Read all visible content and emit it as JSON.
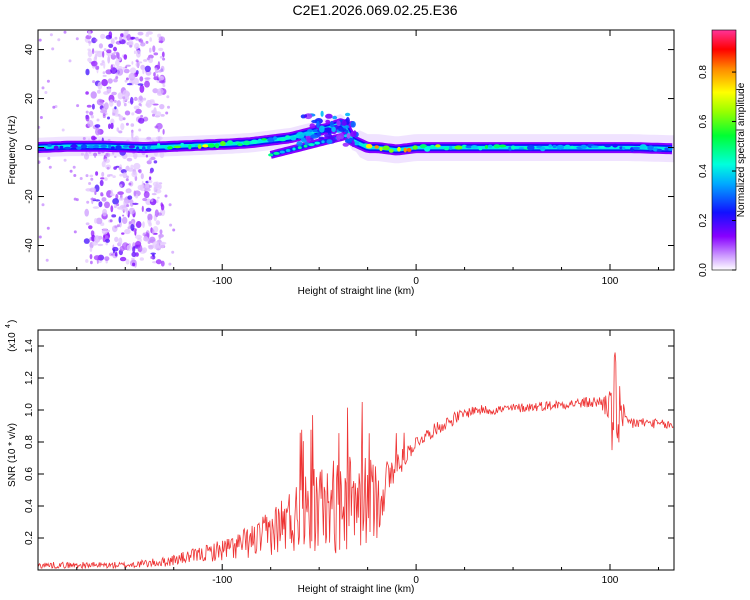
{
  "page_title": "C2E1.2026.069.02.25.E36",
  "chart_data": [
    {
      "type": "heatmap",
      "title": "C2E1.2026.069.02.25.E36",
      "xlabel": "Height of straight line (km)",
      "ylabel": "Frequency (Hz)",
      "xlim": [
        -195,
        133
      ],
      "ylim": [
        -50,
        48
      ],
      "xticks": [
        -100,
        0,
        100
      ],
      "xtick_labels": [
        "-100",
        "0",
        "100"
      ],
      "yticks": [
        -40,
        -20,
        0,
        20,
        40
      ],
      "ytick_labels": [
        "-40",
        "-20",
        "0",
        "20",
        "40"
      ],
      "colorbar": {
        "label": "Normalized spectral amplitude",
        "range": [
          0,
          0.97
        ],
        "ticks": [
          0.0,
          0.2,
          0.4,
          0.6,
          0.8
        ],
        "tick_labels": [
          "0.0",
          "0.2",
          "0.4",
          "0.6",
          "0.8"
        ],
        "colormap": "rainbow (white-violet-blue-cyan-green-yellow-red)"
      },
      "ridge": {
        "x": [
          -195,
          -180,
          -160,
          -140,
          -125,
          -110,
          -95,
          -85,
          -75,
          -65,
          -55,
          -45,
          -38,
          -33,
          -25,
          -20,
          -10,
          0,
          10,
          30,
          60,
          90,
          100,
          110,
          133
        ],
        "center_hz": [
          0,
          0.5,
          0.5,
          0,
          0.5,
          1,
          1.5,
          2,
          3,
          4,
          6,
          8,
          10,
          3,
          0,
          0,
          -1,
          0,
          0,
          0,
          0,
          0,
          0,
          0,
          -0.5
        ],
        "peak_amplitude": [
          0.3,
          0.3,
          0.35,
          0.3,
          0.6,
          0.7,
          0.75,
          0.7,
          0.5,
          0.45,
          0.4,
          0.35,
          0.35,
          0.4,
          0.8,
          0.9,
          0.85,
          0.8,
          0.7,
          0.55,
          0.5,
          0.45,
          0.4,
          0.4,
          0.35
        ]
      },
      "secondary_branch": {
        "x": [
          -75,
          -65,
          -55,
          -45,
          -35
        ],
        "center_hz": [
          -3,
          -1,
          1,
          3,
          5
        ]
      },
      "scatter_zone": {
        "x_range": [
          -170,
          -130
        ],
        "y_range": [
          -48,
          48
        ]
      }
    },
    {
      "type": "line",
      "xlabel": "Height of straight line (km)",
      "ylabel": "SNR (10 * v/v)",
      "y_multiplier": "(x10",
      "y_multiplier_exp": "4",
      "xlim": [
        -195,
        133
      ],
      "ylim": [
        0,
        1.5
      ],
      "xticks": [
        -100,
        0,
        100
      ],
      "xtick_labels": [
        "-100",
        "0",
        "100"
      ],
      "yticks": [
        0.2,
        0.4,
        0.6,
        0.8,
        1.0,
        1.2,
        1.4
      ],
      "ytick_labels": [
        "0.2",
        "0.4",
        "0.6",
        "0.8",
        "1.0",
        "1.2",
        "1.4"
      ],
      "color": "#ee3333",
      "envelope": {
        "x": [
          -195,
          -150,
          -130,
          -110,
          -95,
          -80,
          -70,
          -60,
          -50,
          -40,
          -30,
          -20,
          -15,
          -10,
          -5,
          0,
          10,
          20,
          30,
          40,
          60,
          80,
          95,
          100,
          103,
          108,
          120,
          133
        ],
        "mean": [
          0.03,
          0.03,
          0.05,
          0.1,
          0.14,
          0.2,
          0.28,
          0.34,
          0.38,
          0.4,
          0.42,
          0.45,
          0.55,
          0.65,
          0.72,
          0.8,
          0.88,
          0.95,
          1.0,
          1.0,
          1.02,
          1.04,
          1.05,
          1.03,
          0.95,
          0.92,
          0.92,
          0.9
        ],
        "noise": [
          0.02,
          0.02,
          0.03,
          0.05,
          0.08,
          0.12,
          0.18,
          0.24,
          0.28,
          0.3,
          0.3,
          0.25,
          0.15,
          0.1,
          0.06,
          0.04,
          0.04,
          0.04,
          0.03,
          0.03,
          0.03,
          0.03,
          0.04,
          0.12,
          0.35,
          0.05,
          0.03,
          0.03
        ]
      }
    }
  ]
}
